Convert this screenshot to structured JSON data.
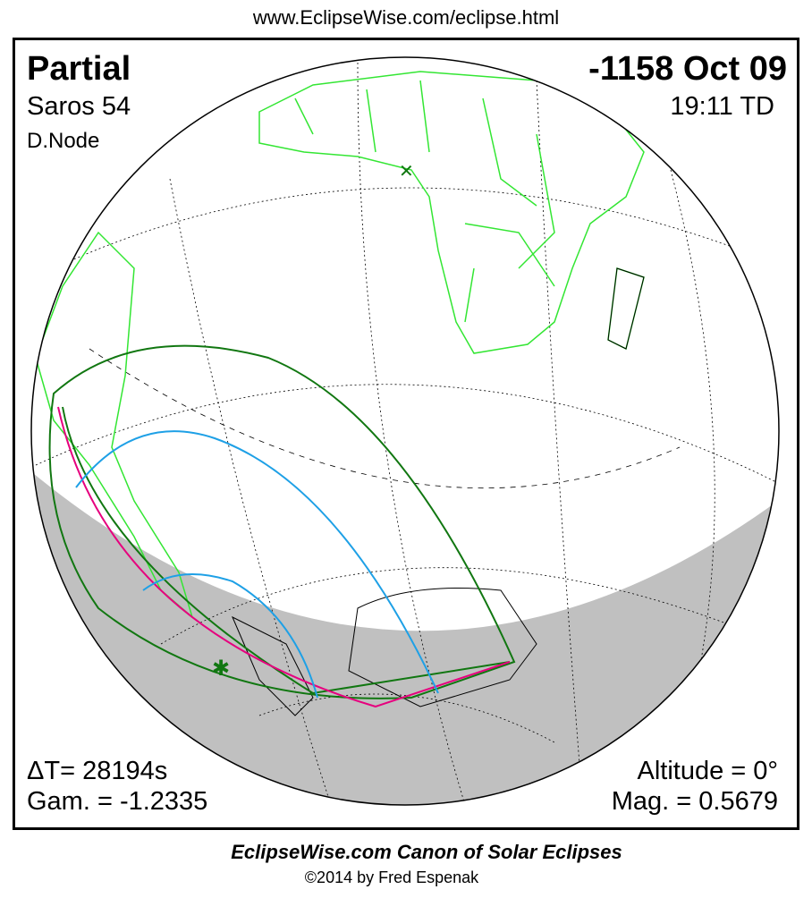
{
  "header": {
    "url": "www.EclipseWise.com/eclipse.html"
  },
  "eclipse": {
    "type": "Partial",
    "date": "-1158 Oct 09",
    "saros": "Saros  54",
    "time": "19:11 TD",
    "node": "D.Node",
    "delta_t": "ΔT=  28194s",
    "gamma": "Gam. = -1.2335",
    "altitude": "Altitude =  0°",
    "magnitude": "Mag. = 0.5679"
  },
  "footer": {
    "title": "EclipseWise.com Canon of Solar Eclipses",
    "copyright": "©2014 by Fred Espenak"
  },
  "colors": {
    "land": "#33e633",
    "penumbra_limits": "#117711",
    "max_eclipse_curve": "#e6007e",
    "magnitude_curves": "#1ea0e6",
    "night": "#c0c0c0"
  },
  "markers": {
    "subsolar": "x-icon",
    "greatest_eclipse": "star-icon"
  }
}
